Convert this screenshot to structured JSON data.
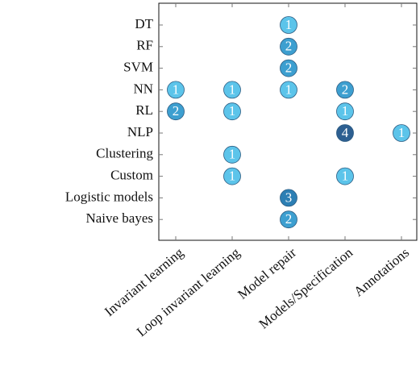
{
  "chart_data": {
    "type": "bubble-matrix",
    "x_categories": [
      "Invariant learning",
      "Loop invariant learning",
      "Model repair",
      "Models/Specification",
      "Annotations"
    ],
    "y_categories": [
      "DT",
      "RF",
      "SVM",
      "NN",
      "RL",
      "NLP",
      "Clustering",
      "Custom",
      "Logistic models",
      "Naive bayes"
    ],
    "level_colors": [
      "#5cc4ea",
      "#3d9fd0",
      "#2c7fb4",
      "#2d5f91"
    ],
    "points": [
      {
        "x": "Model repair",
        "y": "DT",
        "value": 1
      },
      {
        "x": "Model repair",
        "y": "RF",
        "value": 2
      },
      {
        "x": "Model repair",
        "y": "SVM",
        "value": 2
      },
      {
        "x": "Invariant learning",
        "y": "NN",
        "value": 1
      },
      {
        "x": "Loop invariant learning",
        "y": "NN",
        "value": 1
      },
      {
        "x": "Model repair",
        "y": "NN",
        "value": 1
      },
      {
        "x": "Models/Specification",
        "y": "NN",
        "value": 2
      },
      {
        "x": "Invariant learning",
        "y": "RL",
        "value": 2
      },
      {
        "x": "Loop invariant learning",
        "y": "RL",
        "value": 1
      },
      {
        "x": "Models/Specification",
        "y": "RL",
        "value": 1
      },
      {
        "x": "Models/Specification",
        "y": "NLP",
        "value": 4
      },
      {
        "x": "Annotations",
        "y": "NLP",
        "value": 1
      },
      {
        "x": "Loop invariant learning",
        "y": "Clustering",
        "value": 1
      },
      {
        "x": "Loop invariant learning",
        "y": "Custom",
        "value": 1
      },
      {
        "x": "Models/Specification",
        "y": "Custom",
        "value": 1
      },
      {
        "x": "Model repair",
        "y": "Logistic models",
        "value": 3
      },
      {
        "x": "Model repair",
        "y": "Naive bayes",
        "value": 2
      }
    ]
  }
}
